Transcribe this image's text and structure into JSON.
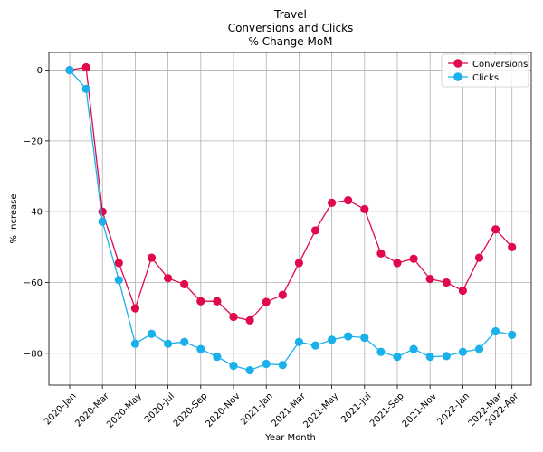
{
  "chart_data": {
    "type": "line",
    "title": [
      "Travel",
      "Conversions and Clicks",
      "% Change MoM"
    ],
    "xlabel": "Year Month",
    "ylabel": "% Increase",
    "x": [
      "2020-Jan",
      "2020-Feb",
      "2020-Mar",
      "2020-Apr",
      "2020-May",
      "2020-Jun",
      "2020-Jul",
      "2020-Aug",
      "2020-Sep",
      "2020-Oct",
      "2020-Nov",
      "2020-Dec",
      "2021-Jan",
      "2021-Feb",
      "2021-Mar",
      "2021-Apr",
      "2021-May",
      "2021-Jun",
      "2021-Jul",
      "2021-Aug",
      "2021-Sep",
      "2021-Oct",
      "2021-Nov",
      "2021-Dec",
      "2022-Jan",
      "2022-Feb",
      "2022-Mar",
      "2022-Apr"
    ],
    "xtick_labels": [
      "2020-Jan",
      "2020-Mar",
      "2020-May",
      "2020-Jul",
      "2020-Sep",
      "2020-Nov",
      "2021-Jan",
      "2021-Mar",
      "2021-May",
      "2021-Jul",
      "2021-Sep",
      "2021-Nov",
      "2022-Jan",
      "2022-Mar",
      "2022-Apr"
    ],
    "ylim": [
      -89,
      5
    ],
    "yticks": [
      0,
      -20,
      -40,
      -60,
      -80
    ],
    "grid": true,
    "legend_position": "top-right",
    "series": [
      {
        "name": "Conversions",
        "color": "#e0094b",
        "values": [
          0,
          0.8,
          -40,
          -54.5,
          -67.3,
          -53,
          -58.8,
          -60.5,
          -65.3,
          -65.3,
          -69.7,
          -70.7,
          -65.5,
          -63.5,
          -54.5,
          -45.3,
          -37.5,
          -36.8,
          -39.3,
          -51.8,
          -54.5,
          -53.3,
          -59,
          -60,
          -62.3,
          -53,
          -45,
          -50
        ]
      },
      {
        "name": "Clicks",
        "color": "#1ab0ea",
        "values": [
          0,
          -5.3,
          -42.8,
          -59.3,
          -77.3,
          -74.5,
          -77.3,
          -76.8,
          -78.8,
          -81,
          -83.5,
          -84.8,
          -83,
          -83.3,
          -76.8,
          -77.8,
          -76.2,
          -75.2,
          -75.6,
          -79.6,
          -81,
          -78.8,
          -81,
          -80.8,
          -79.6,
          -78.8,
          -73.8,
          -74.8
        ]
      }
    ]
  }
}
